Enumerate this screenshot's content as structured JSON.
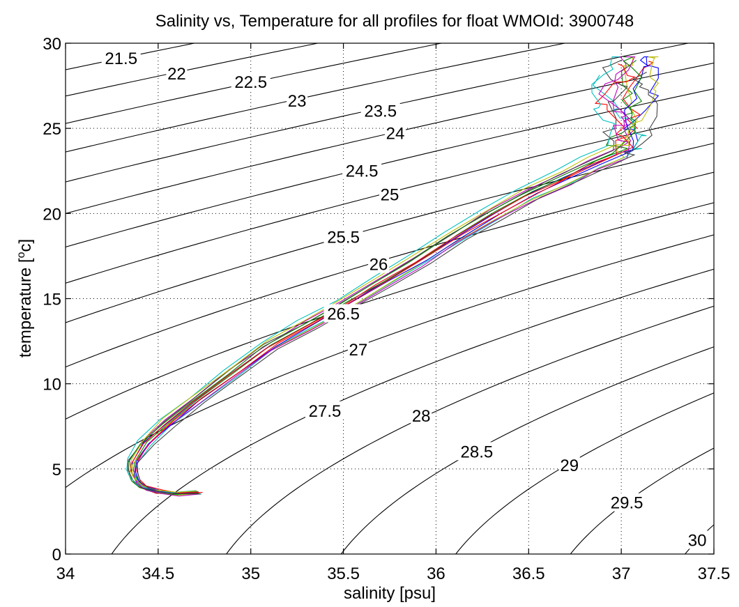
{
  "chart_data": {
    "type": "line",
    "title": "Salinity vs, Temperature for all profiles for float WMOId: 3900748",
    "xlabel": "salinity [psu]",
    "ylabel_parts": {
      "base": "temperature [",
      "sup": "o",
      "unit": "c]"
    },
    "xlim": [
      34,
      37.5
    ],
    "ylim": [
      0,
      30
    ],
    "grid": true,
    "x_ticks": [
      "34",
      "34.5",
      "35",
      "35.5",
      "36",
      "36.5",
      "37",
      "37.5"
    ],
    "y_ticks": [
      "0",
      "5",
      "10",
      "15",
      "20",
      "25",
      "30"
    ],
    "density_contours": {
      "levels": [
        21.5,
        22,
        22.5,
        23,
        23.5,
        24,
        24.5,
        25,
        25.5,
        26,
        26.5,
        27,
        27.5,
        28,
        28.5,
        29,
        29.5,
        30
      ],
      "labels": [
        {
          "text": "21.5",
          "s": 34.3,
          "t": 29.1
        },
        {
          "text": "22",
          "s": 34.6,
          "t": 28.2
        },
        {
          "text": "22.5",
          "s": 35.0,
          "t": 27.7
        },
        {
          "text": "23",
          "s": 35.25,
          "t": 26.6
        },
        {
          "text": "23.5",
          "s": 35.7,
          "t": 26.0
        },
        {
          "text": "24",
          "s": 35.78,
          "t": 24.7
        },
        {
          "text": "24.5",
          "s": 35.6,
          "t": 22.5
        },
        {
          "text": "25",
          "s": 35.75,
          "t": 21.1
        },
        {
          "text": "25.5",
          "s": 35.5,
          "t": 18.6
        },
        {
          "text": "26",
          "s": 35.69,
          "t": 17.0
        },
        {
          "text": "26.5",
          "s": 35.5,
          "t": 14.1
        },
        {
          "text": "27",
          "s": 35.58,
          "t": 12.0
        },
        {
          "text": "27.5",
          "s": 35.4,
          "t": 8.4
        },
        {
          "text": "28",
          "s": 35.92,
          "t": 8.1
        },
        {
          "text": "28.5",
          "s": 36.22,
          "t": 6.0
        },
        {
          "text": "29",
          "s": 36.72,
          "t": 5.2
        },
        {
          "text": "29.5",
          "s": 37.03,
          "t": 3.0
        },
        {
          "text": "30",
          "s": 37.41,
          "t": 0.8
        }
      ]
    },
    "mean_profile": {
      "salinity": [
        34.72,
        34.6,
        34.5,
        34.42,
        34.38,
        34.35,
        34.36,
        34.43,
        34.55,
        34.7,
        34.9,
        35.1,
        35.3,
        35.5,
        35.7,
        35.9,
        36.1,
        36.3,
        36.5,
        36.7,
        36.85,
        37.0
      ],
      "temperature": [
        3.6,
        3.55,
        3.65,
        3.9,
        4.3,
        4.8,
        5.4,
        6.5,
        7.7,
        9.0,
        10.6,
        12.2,
        13.4,
        14.6,
        15.9,
        17.2,
        18.6,
        19.9,
        21.1,
        22.1,
        22.9,
        23.6
      ]
    },
    "series": [
      {
        "color": "#0000ff",
        "s_shift": 0.0,
        "t_shift": 0.0
      },
      {
        "color": "#008000",
        "s_shift": 0.02,
        "t_shift": 0.15
      },
      {
        "color": "#ff0000",
        "s_shift": -0.02,
        "t_shift": -0.1
      },
      {
        "color": "#00bfbf",
        "s_shift": 0.03,
        "t_shift": -0.2
      },
      {
        "color": "#bf00bf",
        "s_shift": -0.01,
        "t_shift": 0.25
      },
      {
        "color": "#bfbf00",
        "s_shift": 0.01,
        "t_shift": -0.25
      },
      {
        "color": "#404040",
        "s_shift": -0.03,
        "t_shift": 0.1
      },
      {
        "color": "#0000ff",
        "s_shift": 0.04,
        "t_shift": 0.05
      },
      {
        "color": "#008000",
        "s_shift": -0.04,
        "t_shift": -0.05
      },
      {
        "color": "#ff0000",
        "s_shift": 0.05,
        "t_shift": 0.2
      },
      {
        "color": "#00bfbf",
        "s_shift": -0.05,
        "t_shift": 0.3
      },
      {
        "color": "#bf00bf",
        "s_shift": 0.02,
        "t_shift": -0.3
      },
      {
        "color": "#bfbf00",
        "s_shift": -0.02,
        "t_shift": 0.35
      },
      {
        "color": "#404040",
        "s_shift": 0.06,
        "t_shift": -0.15
      }
    ],
    "colors": {
      "axes": "#000000",
      "grid": "#000000",
      "contours": "#000000",
      "background": "#ffffff"
    }
  }
}
